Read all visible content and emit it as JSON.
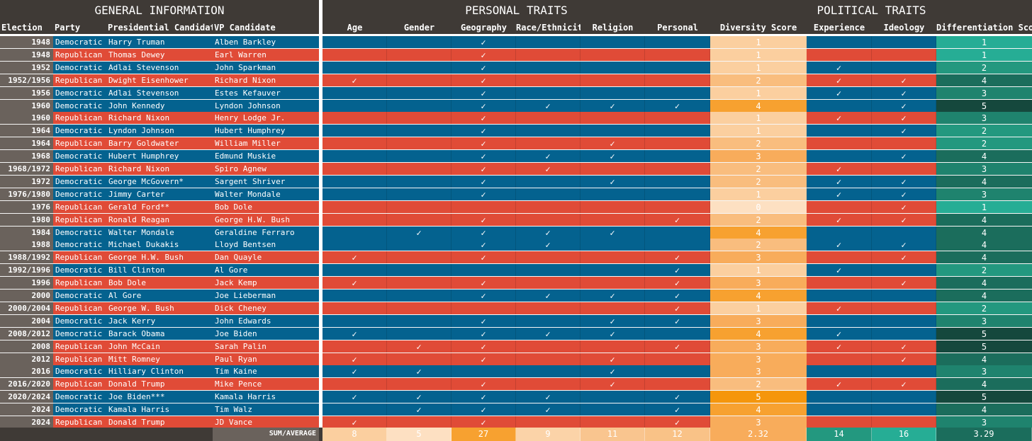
{
  "groups": {
    "general": "GENERAL INFORMATION",
    "personal": "PERSONAL TRAITS",
    "political": "POLITICAL TRAITS"
  },
  "columns": [
    "Election",
    "Party",
    "Presidential Candidate",
    "VP Candidate",
    "Age",
    "Gender",
    "Geography",
    "Race/Ethnicity",
    "Religion",
    "Personal",
    "Diversity Score",
    "Experience",
    "Ideology",
    "Differentiation Score"
  ],
  "check_glyph": "✓",
  "colors": {
    "democratic": "#04628f",
    "republican": "#e04b37",
    "header": "#3f3a36",
    "election_cell": "#6a625c",
    "diversity_scale": [
      "#fde0c2",
      "#fbcf9f",
      "#f9bd7e",
      "#f8ac5b",
      "#f7a130",
      "#f5960c"
    ],
    "differentiation_scale": [
      "#2fc1a7",
      "#26ad95",
      "#23987f",
      "#1f836e",
      "#1b6d5c",
      "#15483d"
    ]
  },
  "rows": [
    {
      "election": "1948",
      "party": "Democratic",
      "president": "Harry Truman",
      "vp": "Alben Barkley",
      "age": false,
      "gender": false,
      "geography": true,
      "race": false,
      "religion": false,
      "personal": false,
      "diversity": "1",
      "experience": false,
      "ideology": false,
      "differentiation": "1"
    },
    {
      "election": "1948",
      "party": "Republican",
      "president": "Thomas Dewey",
      "vp": "Earl Warren",
      "age": false,
      "gender": false,
      "geography": true,
      "race": false,
      "religion": false,
      "personal": false,
      "diversity": "1",
      "experience": false,
      "ideology": false,
      "differentiation": "1"
    },
    {
      "election": "1952",
      "party": "Democratic",
      "president": "Adlai Stevenson",
      "vp": "John Sparkman",
      "age": false,
      "gender": false,
      "geography": true,
      "race": false,
      "religion": false,
      "personal": false,
      "diversity": "1",
      "experience": true,
      "ideology": false,
      "differentiation": "2"
    },
    {
      "election": "1952/1956",
      "party": "Republican",
      "president": "Dwight Eisenhower",
      "vp": "Richard Nixon",
      "age": true,
      "gender": false,
      "geography": true,
      "race": false,
      "religion": false,
      "personal": false,
      "diversity": "2",
      "experience": true,
      "ideology": true,
      "differentiation": "4"
    },
    {
      "election": "1956",
      "party": "Democratic",
      "president": "Adlai Stevenson",
      "vp": "Estes Kefauver",
      "age": false,
      "gender": false,
      "geography": true,
      "race": false,
      "religion": false,
      "personal": false,
      "diversity": "1",
      "experience": true,
      "ideology": true,
      "differentiation": "3"
    },
    {
      "election": "1960",
      "party": "Democratic",
      "president": "John Kennedy",
      "vp": "Lyndon Johnson",
      "age": false,
      "gender": false,
      "geography": true,
      "race": true,
      "religion": true,
      "personal": true,
      "diversity": "4",
      "experience": false,
      "ideology": true,
      "differentiation": "5"
    },
    {
      "election": "1960",
      "party": "Republican",
      "president": "Richard Nixon",
      "vp": "Henry Lodge Jr.",
      "age": false,
      "gender": false,
      "geography": true,
      "race": false,
      "religion": false,
      "personal": false,
      "diversity": "1",
      "experience": true,
      "ideology": true,
      "differentiation": "3"
    },
    {
      "election": "1964",
      "party": "Democratic",
      "president": "Lyndon Johnson",
      "vp": "Hubert Humphrey",
      "age": false,
      "gender": false,
      "geography": true,
      "race": false,
      "religion": false,
      "personal": false,
      "diversity": "1",
      "experience": false,
      "ideology": true,
      "differentiation": "2"
    },
    {
      "election": "1964",
      "party": "Republican",
      "president": "Barry Goldwater",
      "vp": "William Miller",
      "age": false,
      "gender": false,
      "geography": true,
      "race": false,
      "religion": true,
      "personal": false,
      "diversity": "2",
      "experience": false,
      "ideology": false,
      "differentiation": "2"
    },
    {
      "election": "1968",
      "party": "Democratic",
      "president": "Hubert Humphrey",
      "vp": "Edmund Muskie",
      "age": false,
      "gender": false,
      "geography": true,
      "race": true,
      "religion": true,
      "personal": false,
      "diversity": "3",
      "experience": false,
      "ideology": true,
      "differentiation": "4"
    },
    {
      "election": "1968/1972",
      "party": "Republican",
      "president": "Richard Nixon",
      "vp": "Spiro Agnew",
      "age": false,
      "gender": false,
      "geography": true,
      "race": true,
      "religion": false,
      "personal": false,
      "diversity": "2",
      "experience": true,
      "ideology": false,
      "differentiation": "3"
    },
    {
      "election": "1972",
      "party": "Democratic",
      "president": "George McGovern*",
      "vp": "Sargent Shriver",
      "age": false,
      "gender": false,
      "geography": true,
      "race": false,
      "religion": true,
      "personal": false,
      "diversity": "2",
      "experience": true,
      "ideology": true,
      "differentiation": "4"
    },
    {
      "election": "1976/1980",
      "party": "Democratic",
      "president": "Jimmy Carter",
      "vp": "Walter Mondale",
      "age": false,
      "gender": false,
      "geography": true,
      "race": false,
      "religion": false,
      "personal": false,
      "diversity": "1",
      "experience": true,
      "ideology": true,
      "differentiation": "3"
    },
    {
      "election": "1976",
      "party": "Republican",
      "president": "Gerald Ford**",
      "vp": "Bob Dole",
      "age": false,
      "gender": false,
      "geography": false,
      "race": false,
      "religion": false,
      "personal": false,
      "diversity": "0",
      "experience": false,
      "ideology": true,
      "differentiation": "1"
    },
    {
      "election": "1980",
      "party": "Republican",
      "president": "Ronald Reagan",
      "vp": "George H.W. Bush",
      "age": false,
      "gender": false,
      "geography": true,
      "race": false,
      "religion": false,
      "personal": true,
      "diversity": "2",
      "experience": true,
      "ideology": true,
      "differentiation": "4"
    },
    {
      "election": "1984",
      "party": "Democratic",
      "president": "Walter Mondale",
      "vp": "Geraldine Ferraro",
      "age": false,
      "gender": true,
      "geography": true,
      "race": true,
      "religion": true,
      "personal": false,
      "diversity": "4",
      "experience": false,
      "ideology": false,
      "differentiation": "4"
    },
    {
      "election": "1988",
      "party": "Democratic",
      "president": "Michael Dukakis",
      "vp": "Lloyd Bentsen",
      "age": false,
      "gender": false,
      "geography": true,
      "race": true,
      "religion": false,
      "personal": false,
      "diversity": "2",
      "experience": true,
      "ideology": true,
      "differentiation": "4"
    },
    {
      "election": "1988/1992",
      "party": "Republican",
      "president": "George H.W. Bush",
      "vp": "Dan Quayle",
      "age": true,
      "gender": false,
      "geography": true,
      "race": false,
      "religion": false,
      "personal": true,
      "diversity": "3",
      "experience": false,
      "ideology": true,
      "differentiation": "4"
    },
    {
      "election": "1992/1996",
      "party": "Democratic",
      "president": "Bill Clinton",
      "vp": "Al Gore",
      "age": false,
      "gender": false,
      "geography": false,
      "race": false,
      "religion": false,
      "personal": true,
      "diversity": "1",
      "experience": true,
      "ideology": false,
      "differentiation": "2"
    },
    {
      "election": "1996",
      "party": "Republican",
      "president": "Bob Dole",
      "vp": "Jack Kemp",
      "age": true,
      "gender": false,
      "geography": true,
      "race": false,
      "religion": false,
      "personal": true,
      "diversity": "3",
      "experience": false,
      "ideology": true,
      "differentiation": "4"
    },
    {
      "election": "2000",
      "party": "Democratic",
      "president": "Al Gore",
      "vp": "Joe Lieberman",
      "age": false,
      "gender": false,
      "geography": true,
      "race": true,
      "religion": true,
      "personal": true,
      "diversity": "4",
      "experience": false,
      "ideology": false,
      "differentiation": "4"
    },
    {
      "election": "2000/2004",
      "party": "Republican",
      "president": "George W. Bush",
      "vp": "Dick Cheney",
      "age": false,
      "gender": false,
      "geography": false,
      "race": false,
      "religion": false,
      "personal": true,
      "diversity": "1",
      "experience": true,
      "ideology": false,
      "differentiation": "2"
    },
    {
      "election": "2004",
      "party": "Democratic",
      "president": "Jack Kerry",
      "vp": "John Edwards",
      "age": false,
      "gender": false,
      "geography": true,
      "race": false,
      "religion": true,
      "personal": true,
      "diversity": "3",
      "experience": false,
      "ideology": false,
      "differentiation": "3"
    },
    {
      "election": "2008/2012",
      "party": "Democratic",
      "president": "Barack Obama",
      "vp": "Joe Biden",
      "age": true,
      "gender": false,
      "geography": true,
      "race": true,
      "religion": true,
      "personal": false,
      "diversity": "4",
      "experience": true,
      "ideology": false,
      "differentiation": "5"
    },
    {
      "election": "2008",
      "party": "Republican",
      "president": "John McCain",
      "vp": "Sarah Palin",
      "age": false,
      "gender": true,
      "geography": true,
      "race": false,
      "religion": false,
      "personal": true,
      "diversity": "3",
      "experience": true,
      "ideology": true,
      "differentiation": "5"
    },
    {
      "election": "2012",
      "party": "Republican",
      "president": "Mitt Romney",
      "vp": "Paul Ryan",
      "age": true,
      "gender": false,
      "geography": true,
      "race": false,
      "religion": true,
      "personal": false,
      "diversity": "3",
      "experience": false,
      "ideology": true,
      "differentiation": "4"
    },
    {
      "election": "2016",
      "party": "Democratic",
      "president": "Hilliary Clinton",
      "vp": "Tim Kaine",
      "age": true,
      "gender": true,
      "geography": false,
      "race": false,
      "religion": true,
      "personal": false,
      "diversity": "3",
      "experience": false,
      "ideology": false,
      "differentiation": "3"
    },
    {
      "election": "2016/2020",
      "party": "Republican",
      "president": "Donald Trump",
      "vp": "Mike Pence",
      "age": false,
      "gender": false,
      "geography": true,
      "race": false,
      "religion": true,
      "personal": false,
      "diversity": "2",
      "experience": true,
      "ideology": true,
      "differentiation": "4"
    },
    {
      "election": "2020/2024",
      "party": "Democratic",
      "president": "Joe Biden***",
      "vp": "Kamala Harris",
      "age": true,
      "gender": true,
      "geography": true,
      "race": true,
      "religion": false,
      "personal": true,
      "diversity": "5",
      "experience": false,
      "ideology": false,
      "differentiation": "5"
    },
    {
      "election": "2024",
      "party": "Democratic",
      "president": "Kamala Harris",
      "vp": "Tim Walz",
      "age": false,
      "gender": true,
      "geography": true,
      "race": true,
      "religion": false,
      "personal": true,
      "diversity": "4",
      "experience": false,
      "ideology": false,
      "differentiation": "4"
    },
    {
      "election": "2024",
      "party": "Republican",
      "president": "Donald Trump",
      "vp": "JD Vance",
      "age": true,
      "gender": false,
      "geography": true,
      "race": false,
      "religion": false,
      "personal": true,
      "diversity": "3",
      "experience": false,
      "ideology": false,
      "differentiation": "3"
    }
  ],
  "footer": {
    "label": "SUM/AVERAGE",
    "values": [
      "8",
      "5",
      "27",
      "9",
      "11",
      "12",
      "2.32",
      "14",
      "16",
      "3.29"
    ],
    "value_colors": [
      "#fbcf9f",
      "#fde0c2",
      "#f7a130",
      "#fbd3a8",
      "#f9c58f",
      "#f9c287",
      "#f8ac5b",
      "#23987f",
      "#26ad95",
      "#1b6d5c"
    ]
  }
}
